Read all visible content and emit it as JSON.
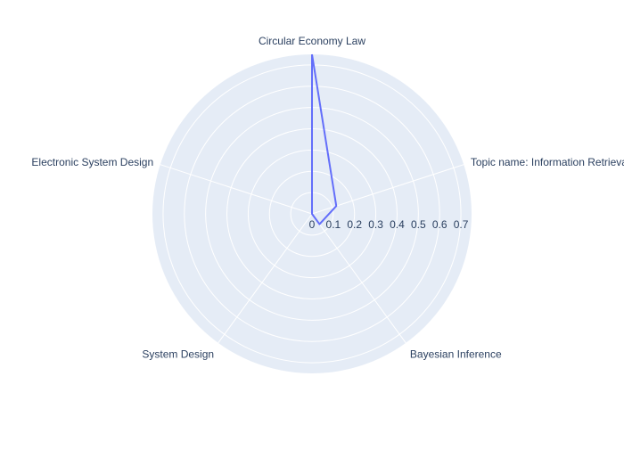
{
  "chart_data": {
    "type": "radar",
    "categories": [
      "Circular Economy Law",
      "Topic name: Information Retrieval",
      "Bayesian Inference",
      "System Design",
      "Electronic System Design"
    ],
    "series": [
      {
        "values": [
          0.75,
          0.12,
          0.06,
          0.0,
          0.0
        ],
        "color": "#636efa"
      }
    ],
    "radial_range": [
      0,
      0.75
    ],
    "radial_ticks": [
      0,
      0.1,
      0.2,
      0.3,
      0.4,
      0.5,
      0.6,
      0.7
    ],
    "radial_tick_labels": [
      "0",
      "0.1",
      "0.2",
      "0.3",
      "0.4",
      "0.5",
      "0.6",
      "0.7"
    ],
    "grid": true,
    "colors": {
      "polar_background": "#e5ecf6",
      "grid_line": "#ffffff",
      "text": "#2a3f5f",
      "series": "#636efa"
    }
  }
}
